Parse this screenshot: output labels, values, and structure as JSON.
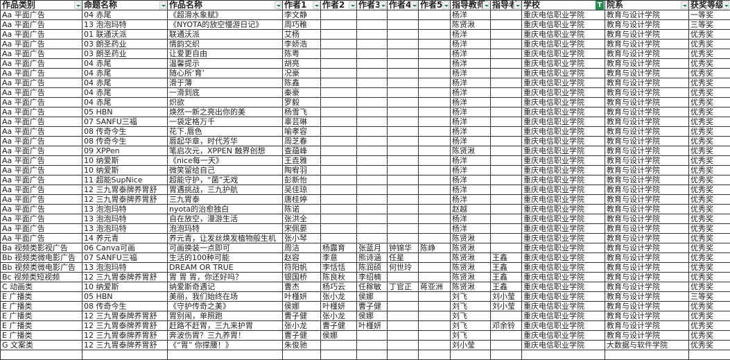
{
  "headers": [
    "作品类别",
    "命题名称",
    "作品名称",
    "作者1",
    "作者2",
    "作者3",
    "作者4",
    "作者5",
    "指导教师",
    "指导老",
    "学校",
    "院系",
    "获奖等级"
  ],
  "filter_active_column": "学校",
  "accent_color": "#1f8f4e",
  "rows": [
    [
      "Aa 平面广告",
      "04 赤尾",
      "《超滑水象赋》",
      "李文静",
      "",
      "",
      "",
      "",
      "杨洋",
      "",
      "重庆电信职业学院",
      "教育与设计学院",
      "一等奖"
    ],
    [
      "Aa 平面广告",
      "13 泡泡玛特",
      "《NYOTA的放空慢游日记》",
      "周巧稚",
      "",
      "",
      "",
      "",
      "陈贤湫",
      "",
      "重庆电信职业学院",
      "教育与设计学院",
      "三等奖"
    ],
    [
      "Aa 平面广告",
      "01 联通沃派",
      "联通沃派",
      "艾杨",
      "",
      "",
      "",
      "",
      "杨洋",
      "",
      "重庆电信职业学院",
      "教育与设计学院",
      "优秀奖"
    ],
    [
      "Aa 平面广告",
      "03 朗圣药业",
      "情韵交织",
      "李娇浩",
      "",
      "",
      "",
      "",
      "杨洋",
      "",
      "重庆电信职业学院",
      "教育与设计学院",
      "优秀奖"
    ],
    [
      "Aa 平面广告",
      "03 朗圣药业",
      "让爱更自由",
      "陈粤",
      "",
      "",
      "",
      "",
      "杨洋",
      "",
      "重庆电信职业学院",
      "教育与设计学院",
      "优秀奖"
    ],
    [
      "Aa 平面广告",
      "04 赤尾",
      "温馨提示",
      "胡亮",
      "",
      "",
      "",
      "",
      "杨洋",
      "",
      "重庆电信职业学院",
      "教育与设计学院",
      "优秀奖"
    ],
    [
      "Aa 平面广告",
      "04 赤尾",
      "随心所‘育’",
      "况豪",
      "",
      "",
      "",
      "",
      "杨洋",
      "",
      "重庆电信职业学院",
      "教育与设计学院",
      "优秀奖"
    ],
    [
      "Aa 平面广告",
      "04 赤尾",
      "滑于薄",
      "陈鑫",
      "",
      "",
      "",
      "",
      "杨洋",
      "",
      "重庆电信职业学院",
      "教育与设计学院",
      "优秀奖"
    ],
    [
      "Aa 平面广告",
      "04 赤尾",
      "一滑到底",
      "秦豪",
      "",
      "",
      "",
      "",
      "杨洋",
      "",
      "重庆电信职业学院",
      "教育与设计学院",
      "优秀奖"
    ],
    [
      "Aa 平面广告",
      "04 赤尾",
      "炽欲",
      "罗毅",
      "",
      "",
      "",
      "",
      "杨洋",
      "",
      "重庆电信职业学院",
      "教育与设计学院",
      "优秀奖"
    ],
    [
      "Aa 平面广告",
      "05 HBN",
      "焕然一新之亮出你的美",
      "杨雪飞",
      "",
      "",
      "",
      "",
      "杨洋",
      "",
      "重庆电信职业学院",
      "教育与设计学院",
      "优秀奖"
    ],
    [
      "Aa 平面广告",
      "07 SANFU三福",
      "一袋定格万千",
      "辜芸琳",
      "",
      "",
      "",
      "",
      "杨洋",
      "",
      "重庆电信职业学院",
      "教育与设计学院",
      "优秀奖"
    ],
    [
      "Aa 平面广告",
      "08 传奇今生",
      "花下.唇色",
      "喻孝容",
      "",
      "",
      "",
      "",
      "杨洋",
      "",
      "重庆电信职业学院",
      "教育与设计学院",
      "优秀奖"
    ],
    [
      "Aa 平面广告",
      "08 传奇今生",
      "唇起华章，时代芳华",
      "周芝春",
      "",
      "",
      "",
      "",
      "杨洋",
      "",
      "重庆电信职业学院",
      "教育与设计学院",
      "优秀奖"
    ],
    [
      "Aa 平面广告",
      "09 XPPen",
      "笔启次元，XPPEN 触界创想",
      "查蕴峰",
      "",
      "",
      "",
      "",
      "陈贤湫",
      "",
      "重庆电信职业学院",
      "教育与设计学院",
      "优秀奖"
    ],
    [
      "Aa 平面广告",
      "10 纳爱斯",
      "《nice每一天》",
      "王垚雅",
      "",
      "",
      "",
      "",
      "杨洋",
      "",
      "重庆电信职业学院",
      "教育与设计学院",
      "优秀奖"
    ],
    [
      "Aa 平面广告",
      "10 纳爱斯",
      "微笑留给自己",
      "陶宥羽",
      "",
      "",
      "",
      "",
      "杨洋",
      "",
      "重庆电信职业学院",
      "教育与设计学院",
      "优秀奖"
    ],
    [
      "Aa 平面广告",
      "11 超能SupNice",
      "超能守护，“菌”无戏",
      "彭新怡",
      "",
      "",
      "",
      "",
      "杨洋",
      "",
      "重庆电信职业学院",
      "教育与设计学院",
      "优秀奖"
    ],
    [
      "Aa 平面广告",
      "12 三九胃泰牌养胃舒",
      "胃遇挑战，三九护航",
      "吴佳琼",
      "",
      "",
      "",
      "",
      "杨洋",
      "",
      "重庆电信职业学院",
      "教育与设计学院",
      "优秀奖"
    ],
    [
      "Aa 平面广告",
      "12 三九胃泰牌养胃舒",
      "三九胃泰",
      "唐桂婷",
      "",
      "",
      "",
      "",
      "杨洋",
      "",
      "重庆电信职业学院",
      "教育与设计学院",
      "优秀奖"
    ],
    [
      "Aa 平面广告",
      "13 泡泡玛特",
      "nyota的治愈独白",
      "陈诺",
      "",
      "",
      "",
      "",
      "赵越",
      "",
      "重庆电信职业学院",
      "教育与设计学院",
      "优秀奖"
    ],
    [
      "Aa 平面广告",
      "13 泡泡玛特",
      "自在放空，漫游生活",
      "张洪全",
      "",
      "",
      "",
      "",
      "杨洋",
      "",
      "重庆电信职业学院",
      "教育与设计学院",
      "优秀奖"
    ],
    [
      "Aa 平面广告",
      "13 泡泡玛特",
      "泡泡玛特",
      "宋佩晏",
      "",
      "",
      "",
      "",
      "杨洋",
      "",
      "重庆电信职业学院",
      "教育与设计学院",
      "优秀奖"
    ],
    [
      "Aa 平面广告",
      "14 养元青",
      "养元青，让发丝焕发植物般生机",
      "张小琴",
      "",
      "",
      "",
      "",
      "陈贤湫",
      "",
      "重庆电信职业学院",
      "教育与设计学院",
      "优秀奖"
    ],
    [
      "Ba 视频类影视广告",
      "06 Canva可画",
      "可画换装一点即可",
      "周洁",
      "杨露育",
      "张蓝月",
      "钟锦华",
      "陈峥",
      "陈贤湫",
      "",
      "重庆电信职业学院",
      "教育与设计学院",
      "优秀奖"
    ],
    [
      "Bb 视频类微电影广告",
      "07 SANFU三福",
      "生活的100种可能",
      "赵容",
      "李意",
      "熊诗涵",
      "任星",
      "",
      "陈贤湫",
      "王鑫",
      "重庆电信职业学院",
      "教育与设计学院",
      "优秀奖"
    ],
    [
      "Bb 视频类微电影广告",
      "13 泡泡玛特",
      "DREAM OR TRUE",
      "符阳帆",
      "李恬恬",
      "陈润硕",
      "何世玲",
      "",
      "陈贤湫",
      "王鑫",
      "重庆电信职业学院",
      "教育与设计学院",
      "优秀奖"
    ],
    [
      "Bc 视频类短视频",
      "12 三九胃泰牌养胃舒",
      "胃 胃 胃，你还好吗？",
      "银国桥",
      "陈良秋",
      "李绍楠",
      "",
      "",
      "陈贤湫",
      "王鑫",
      "重庆电信职业学院",
      "教育与设计学院",
      "优秀奖"
    ],
    [
      "C 动画类",
      "10 纳爱斯",
      "纳爱斯奇遇记",
      "曹杰",
      "杨巧云",
      "任稼敏",
      "丁官正",
      "蒋亚洲",
      "陈贤湫",
      "王鑫",
      "重庆电信职业学院",
      "教育与设计学院",
      "优秀奖"
    ],
    [
      "E 广播类",
      "05 HBN",
      "美丽，我们始终在场",
      "叶槿妍",
      "张小龙",
      "侯娜",
      "",
      "",
      "刘飞",
      "刘小莹",
      "重庆电信职业学院",
      "教育与设计学院",
      "三等奖"
    ],
    [
      "E 广播类",
      "08 传奇今生",
      "《守护传奇之美》",
      "侯娜",
      "叶槿妍",
      "曹子健",
      "",
      "",
      "刘飞",
      "刘小莹",
      "重庆电信职业学院",
      "教育与设计学院",
      "优秀奖"
    ],
    [
      "E 广播类",
      "12 三九胃泰牌养胃舒",
      "胃别闹，单照跑",
      "曹子健",
      "张小龙",
      "侯娜",
      "",
      "",
      "刘飞",
      "",
      "重庆电信职业学院",
      "教育与设计学院",
      "优秀奖"
    ],
    [
      "E 广播类",
      "12 三九胃泰牌养胃舒",
      "赶路不赶胃，三九来护胃",
      "张小龙",
      "曹子健",
      "叶槿妍",
      "",
      "",
      "刘飞",
      "邓余铃",
      "重庆电信职业学院",
      "教育与设计学院",
      "优秀奖"
    ],
    [
      "E 广播类",
      "12 三九胃泰牌养胃舒",
      "奔波伤胃？三九养胃！",
      "曹子健",
      "侯娜",
      "",
      "",
      "",
      "刘飞",
      "",
      "重庆电信职业学院",
      "教育与设计学院",
      "优秀奖"
    ],
    [
      "G 文案类",
      "12 三九胃泰牌养胃舒",
      "《“胃” 你撑腰！》",
      "朱俊驰",
      "",
      "",
      "",
      "",
      "刘小莹",
      "",
      "重庆电信职业学院",
      "大数据与软件学院",
      "优秀奖"
    ],
    [
      "",
      "",
      "",
      "",
      "",
      "",
      "",
      "",
      "",
      "",
      "",
      "",
      ""
    ]
  ]
}
